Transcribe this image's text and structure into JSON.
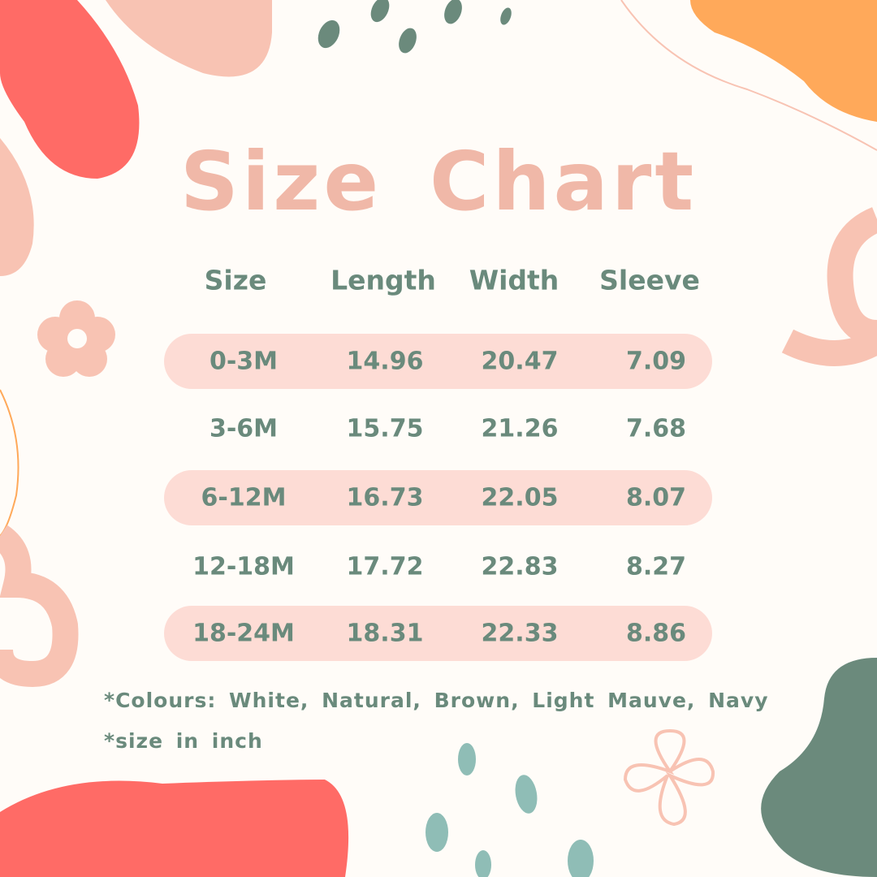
{
  "title": "Size Chart",
  "headers": [
    "Size",
    "Length",
    "Width",
    "Sleeve"
  ],
  "rows": [
    {
      "size": "0-3M",
      "length": "14.96",
      "width": "20.47",
      "sleeve": "7.09",
      "highlighted": true
    },
    {
      "size": "3-6M",
      "length": "15.75",
      "width": "21.26",
      "sleeve": "7.68",
      "highlighted": false
    },
    {
      "size": "6-12M",
      "length": "16.73",
      "width": "22.05",
      "sleeve": "8.07",
      "highlighted": true
    },
    {
      "size": "12-18M",
      "length": "17.72",
      "width": "22.83",
      "sleeve": "8.27",
      "highlighted": false
    },
    {
      "size": "18-24M",
      "length": "18.31",
      "width": "22.33",
      "sleeve": "8.86",
      "highlighted": true
    }
  ],
  "notes": {
    "colours": "*Colours: White, Natural, Brown, Light Mauve, Navy",
    "unit": "*size in inch"
  },
  "colors": {
    "background": "#fffcf8",
    "title": "#f0b8a8",
    "text": "#6a8a7c",
    "row_band": "#fddcd5",
    "coral": "#ff6b66",
    "peach": "#f8c3b3",
    "orange": "#ffa95a",
    "sage": "#6b8a7c",
    "teal": "#8fbdb6"
  }
}
